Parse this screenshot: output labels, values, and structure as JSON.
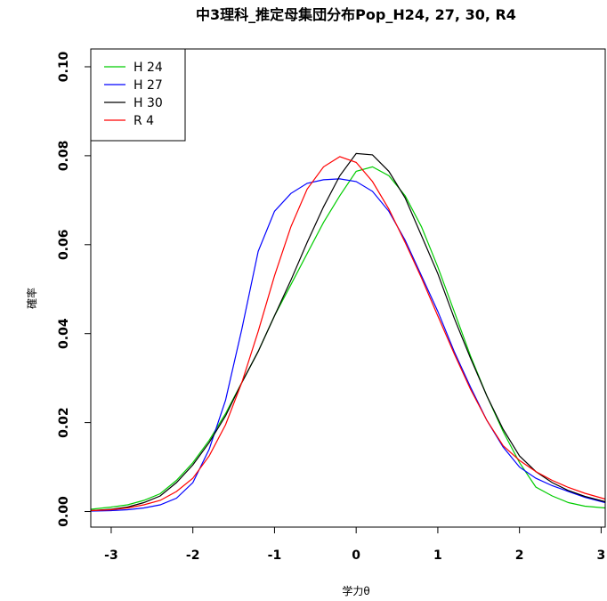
{
  "chart_data": {
    "type": "line",
    "title": "中3理科_推定母集団分布Pop_H24, 27, 30, R4",
    "xlabel": "学力θ",
    "ylabel": "確率",
    "xlim": [
      -3.25,
      3.05
    ],
    "ylim": [
      -0.0035,
      0.104
    ],
    "x_ticks": [
      -3,
      -2,
      -1,
      0,
      1,
      2,
      3
    ],
    "x_tick_labels": [
      "-3",
      "-2",
      "-1",
      "0",
      "1",
      "2",
      "3"
    ],
    "y_ticks": [
      0.0,
      0.02,
      0.04,
      0.06,
      0.08,
      0.1
    ],
    "y_tick_labels": [
      "0.00",
      "0.02",
      "0.04",
      "0.06",
      "0.08",
      "0.10"
    ],
    "legend_position": "top-left",
    "series": [
      {
        "name": "H 24",
        "color": "#00cc00",
        "x": [
          -3.25,
          -3.0,
          -2.8,
          -2.6,
          -2.4,
          -2.2,
          -2.0,
          -1.8,
          -1.6,
          -1.4,
          -1.2,
          -1.0,
          -0.8,
          -0.6,
          -0.4,
          -0.2,
          0.0,
          0.2,
          0.4,
          0.6,
          0.8,
          1.0,
          1.2,
          1.4,
          1.6,
          1.8,
          2.0,
          2.2,
          2.4,
          2.6,
          2.8,
          3.05
        ],
        "y": [
          0.0005,
          0.001,
          0.0015,
          0.0025,
          0.004,
          0.007,
          0.011,
          0.016,
          0.022,
          0.029,
          0.036,
          0.044,
          0.051,
          0.058,
          0.065,
          0.071,
          0.0765,
          0.0775,
          0.0755,
          0.071,
          0.064,
          0.055,
          0.045,
          0.035,
          0.026,
          0.018,
          0.011,
          0.0055,
          0.0035,
          0.002,
          0.0012,
          0.0008
        ]
      },
      {
        "name": "H 27",
        "color": "#0000ff",
        "x": [
          -3.25,
          -3.0,
          -2.8,
          -2.6,
          -2.4,
          -2.2,
          -2.0,
          -1.8,
          -1.6,
          -1.4,
          -1.2,
          -1.0,
          -0.8,
          -0.6,
          -0.4,
          -0.2,
          0.0,
          0.2,
          0.4,
          0.6,
          0.8,
          1.0,
          1.2,
          1.4,
          1.6,
          1.8,
          2.0,
          2.2,
          2.4,
          2.6,
          2.8,
          3.05
        ],
        "y": [
          0.0001,
          0.0002,
          0.0004,
          0.0008,
          0.0015,
          0.003,
          0.0065,
          0.014,
          0.025,
          0.041,
          0.0585,
          0.0675,
          0.0715,
          0.0738,
          0.0746,
          0.0748,
          0.0742,
          0.072,
          0.0675,
          0.061,
          0.053,
          0.045,
          0.036,
          0.028,
          0.0205,
          0.0145,
          0.01,
          0.0075,
          0.0058,
          0.0045,
          0.0032,
          0.002
        ]
      },
      {
        "name": "H 30",
        "color": "#000000",
        "x": [
          -3.25,
          -3.0,
          -2.8,
          -2.6,
          -2.4,
          -2.2,
          -2.0,
          -1.8,
          -1.6,
          -1.4,
          -1.2,
          -1.0,
          -0.8,
          -0.6,
          -0.4,
          -0.2,
          0.0,
          0.2,
          0.4,
          0.6,
          0.8,
          1.0,
          1.2,
          1.4,
          1.6,
          1.8,
          2.0,
          2.2,
          2.4,
          2.6,
          2.8,
          3.05
        ],
        "y": [
          0.0002,
          0.0005,
          0.001,
          0.002,
          0.0035,
          0.0065,
          0.0105,
          0.0155,
          0.0215,
          0.029,
          0.036,
          0.044,
          0.052,
          0.0605,
          0.0685,
          0.0755,
          0.0805,
          0.0802,
          0.0765,
          0.0705,
          0.062,
          0.0535,
          0.0435,
          0.0345,
          0.026,
          0.0185,
          0.0125,
          0.009,
          0.0065,
          0.0047,
          0.0034,
          0.0022
        ]
      },
      {
        "name": "R 4",
        "color": "#ff0000",
        "x": [
          -3.25,
          -3.0,
          -2.8,
          -2.6,
          -2.4,
          -2.2,
          -2.0,
          -1.8,
          -1.6,
          -1.4,
          -1.2,
          -1.0,
          -0.8,
          -0.6,
          -0.4,
          -0.2,
          0.0,
          0.2,
          0.4,
          0.6,
          0.8,
          1.0,
          1.2,
          1.4,
          1.6,
          1.8,
          2.0,
          2.2,
          2.4,
          2.6,
          2.8,
          3.05
        ],
        "y": [
          0.0002,
          0.0004,
          0.0008,
          0.0015,
          0.0025,
          0.0045,
          0.0075,
          0.0125,
          0.0195,
          0.029,
          0.0405,
          0.053,
          0.064,
          0.0725,
          0.0775,
          0.0798,
          0.0785,
          0.0742,
          0.068,
          0.0605,
          0.0525,
          0.044,
          0.0355,
          0.0275,
          0.0205,
          0.0148,
          0.0115,
          0.009,
          0.007,
          0.0054,
          0.0041,
          0.0028
        ]
      }
    ]
  }
}
